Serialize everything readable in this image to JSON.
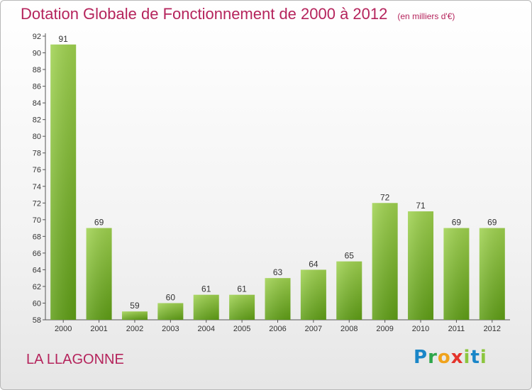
{
  "header": {
    "title": "Dotation Globale de Fonctionnement de 2000 à 2012",
    "subtitle": "(en milliers d'€)"
  },
  "footer": {
    "commune": "LA LLAGONNE",
    "logo": "Proxiti"
  },
  "colors": {
    "accent": "#b5245c",
    "bar_light": "#9fd24f",
    "bar_dark": "#5f9e16"
  },
  "chart_data": {
    "type": "bar",
    "categories": [
      "2000",
      "2001",
      "2002",
      "2003",
      "2004",
      "2005",
      "2006",
      "2007",
      "2008",
      "2009",
      "2010",
      "2011",
      "2012"
    ],
    "values": [
      91,
      69,
      59,
      60,
      61,
      61,
      63,
      64,
      65,
      72,
      71,
      69,
      69
    ],
    "title": "Dotation Globale de Fonctionnement de 2000 à 2012",
    "subtitle": "(en milliers d'€)",
    "ylim": [
      58,
      92
    ],
    "yticks": [
      58,
      60,
      62,
      64,
      66,
      68,
      70,
      72,
      74,
      76,
      78,
      80,
      82,
      84,
      86,
      88,
      90,
      92
    ],
    "data_labels": true,
    "grid": false,
    "legend": "none"
  }
}
